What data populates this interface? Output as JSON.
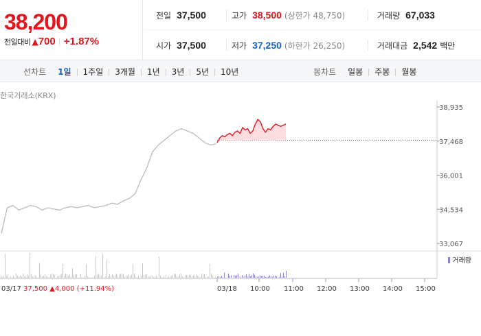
{
  "summary": {
    "price": "38,200",
    "change_label": "전일대비",
    "change_arrow": "▲",
    "change_value": "700",
    "change_pct": "+1.87%"
  },
  "stats": {
    "prev_close": {
      "label": "전일",
      "value": "37,500"
    },
    "high": {
      "label": "고가",
      "value": "38,500",
      "sub": "(상한가 48,750)"
    },
    "volume": {
      "label": "거래량",
      "value": "67,033"
    },
    "open": {
      "label": "시가",
      "value": "37,500"
    },
    "low": {
      "label": "저가",
      "value": "37,250",
      "sub": "(하한가 26,250)"
    },
    "amount": {
      "label": "거래대금",
      "value": "2,542",
      "unit": "백만"
    }
  },
  "tabs": {
    "line_label": "선차트",
    "line_items": [
      "1일",
      "1주일",
      "3개월",
      "1년",
      "3년",
      "5년",
      "10년"
    ],
    "line_active": "1일",
    "candle_label": "봉차트",
    "candle_items": [
      "일봉",
      "주봉",
      "월봉"
    ]
  },
  "chart": {
    "source": "한국거래소(KRX)",
    "volume_legend": "거래량",
    "prev_day_label": "03/17",
    "prev_day_close": "37,500",
    "prev_day_arrow": "▲",
    "prev_day_change": "4,000",
    "prev_day_pct": "(+11.94%)",
    "today_label": "03/18"
  },
  "chart_data": {
    "type": "line",
    "y_ticks": [
      "38,935",
      "37,468",
      "36,001",
      "34,534",
      "33,067"
    ],
    "x_ticks": [
      "10:00",
      "11:00",
      "12:00",
      "13:00",
      "14:00",
      "15:00"
    ],
    "ylim": [
      33067,
      38935
    ],
    "reference_line": 37500,
    "series": [
      {
        "values_prev_day": [
          33500,
          34600,
          34700,
          34500,
          34600,
          34700,
          34650,
          34500,
          34600,
          34550,
          34500,
          34600,
          34650,
          34600,
          34650,
          34700,
          34600,
          34650,
          34700,
          34800,
          34750,
          34900,
          35000,
          35200,
          35800,
          36300,
          37000,
          37300,
          37500,
          37700,
          37900,
          38000,
          37900,
          37800,
          37600,
          37400,
          37300,
          37350
        ]
      },
      {
        "values_today": [
          37400,
          37600,
          37700,
          37650,
          37750,
          37800,
          37700,
          37850,
          37900,
          37800,
          38050,
          37950,
          38000,
          37800,
          37900,
          38200,
          38400,
          38300,
          38000,
          37850,
          38000,
          37950,
          38100,
          38200,
          38150,
          38100,
          38150,
          38200
        ]
      }
    ],
    "colors": {
      "up": "#e2141c",
      "down": "#1261c4",
      "prev_line": "#bbbbbb",
      "volume": "#8e7fd0"
    }
  }
}
